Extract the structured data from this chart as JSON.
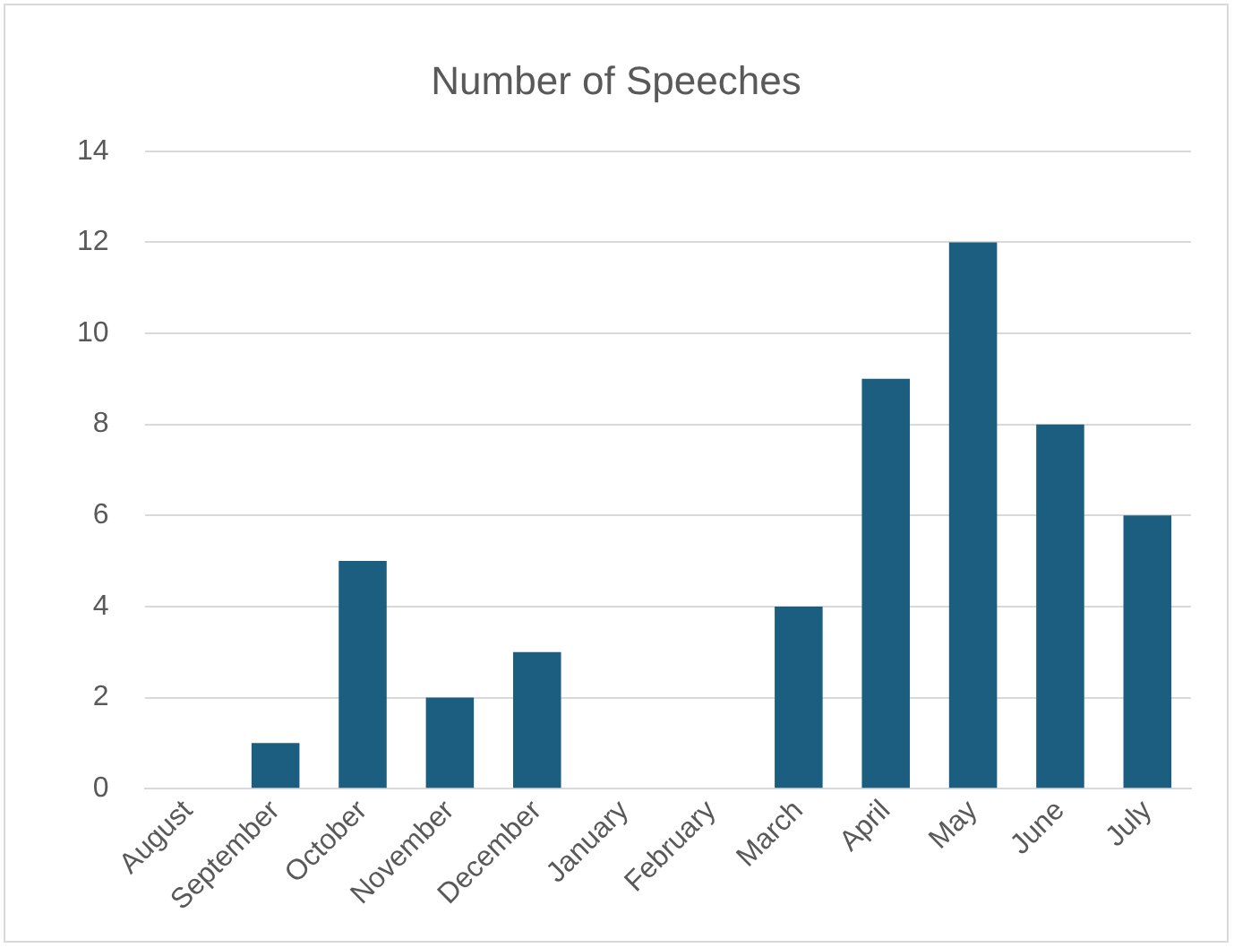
{
  "chart_data": {
    "type": "bar",
    "title": "Number of Speeches",
    "categories": [
      "August",
      "September",
      "October",
      "November",
      "December",
      "January",
      "February",
      "March",
      "April",
      "May",
      "June",
      "July"
    ],
    "values": [
      0,
      1,
      5,
      2,
      3,
      0,
      0,
      4,
      9,
      12,
      8,
      6
    ],
    "color": "#1b5e80",
    "ylim": [
      0,
      14
    ],
    "yticks": [
      0,
      2,
      4,
      6,
      8,
      10,
      12,
      14
    ],
    "grid": "y"
  }
}
